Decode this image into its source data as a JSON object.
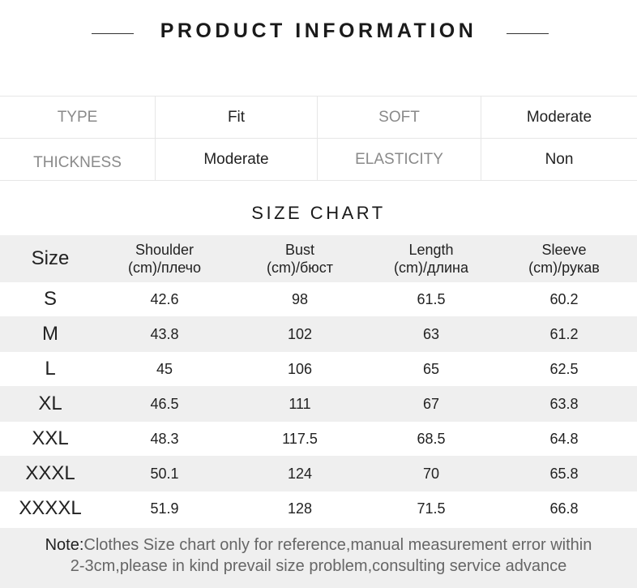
{
  "title": "PRODUCT INFORMATION",
  "info": [
    [
      {
        "label": "TYPE",
        "value": "Fit"
      },
      {
        "label": "SOFT",
        "value": "Moderate"
      }
    ],
    [
      {
        "label": "THICKNESS",
        "value": "Moderate"
      },
      {
        "label": "ELASTICITY",
        "value": "Non"
      }
    ]
  ],
  "size_chart": {
    "title": "SIZE CHART",
    "headers": [
      [
        "Size",
        ""
      ],
      [
        "Shoulder",
        "(cm)/плечо"
      ],
      [
        "Bust",
        "(cm)/бюст"
      ],
      [
        "Length",
        "(cm)/длина"
      ],
      [
        "Sleeve",
        "(cm)/рукав"
      ]
    ],
    "rows": [
      [
        "S",
        "42.6",
        "98",
        "61.5",
        "60.2"
      ],
      [
        "M",
        "43.8",
        "102",
        "63",
        "61.2"
      ],
      [
        "L",
        "45",
        "106",
        "65",
        "62.5"
      ],
      [
        "XL",
        "46.5",
        "111",
        "67",
        "63.8"
      ],
      [
        "XXL",
        "48.3",
        "117.5",
        "68.5",
        "64.8"
      ],
      [
        "XXXL",
        "50.1",
        "124",
        "70",
        "65.8"
      ],
      [
        "XXXXL",
        "51.9",
        "128",
        "71.5",
        "66.8"
      ]
    ]
  },
  "note": {
    "label": "Note:",
    "line1": "Clothes Size chart only for reference,manual measurement error within",
    "line2": "2-3cm,please in kind prevail size problem,consulting service advance"
  },
  "colors": {
    "row_alt": "#efefef",
    "label": "#8a8a8a"
  }
}
